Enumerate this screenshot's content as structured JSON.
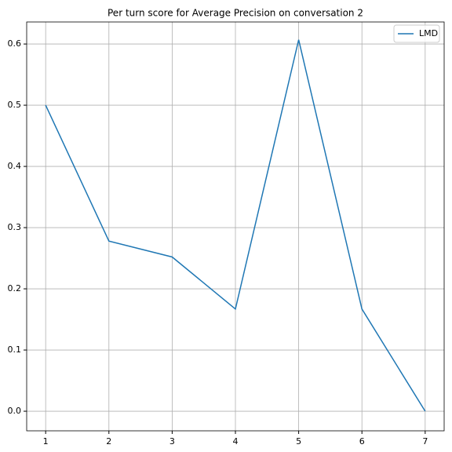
{
  "chart_data": {
    "type": "line",
    "title": "Per turn score for Average Precision on conversation 2",
    "x": [
      1,
      2,
      3,
      4,
      5,
      6,
      7
    ],
    "series": [
      {
        "name": "LMD",
        "color": "#1f77b4",
        "values": [
          0.5,
          0.278,
          0.252,
          0.167,
          0.607,
          0.167,
          0.0
        ]
      }
    ],
    "xlim": [
      0.7,
      7.3
    ],
    "xticks": [
      1,
      2,
      3,
      4,
      5,
      6,
      7
    ],
    "ylim": [
      -0.032,
      0.636
    ],
    "yticks": [
      {
        "value": 0.0,
        "label": "0.0"
      },
      0.1,
      0.2,
      0.3,
      0.4,
      0.5,
      0.6
    ],
    "grid": true,
    "legend": "upper right"
  }
}
